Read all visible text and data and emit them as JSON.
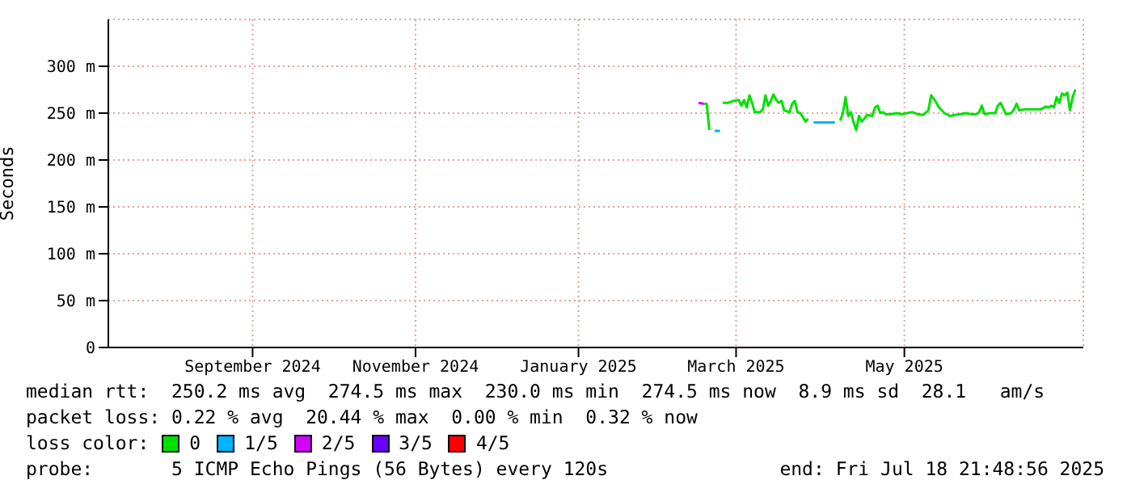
{
  "chart_data": {
    "type": "line",
    "ylabel": "Seconds",
    "legend_title": "loss color:",
    "legend": "bottom",
    "grid": true,
    "marker": "none",
    "line_style": "solid",
    "xlim": [
      "2024-07-18",
      "2025-07-18"
    ],
    "xticks": [
      {
        "value": "2024-09-10",
        "label": "September 2024"
      },
      {
        "value": "2024-11-10",
        "label": "November 2024"
      },
      {
        "value": "2025-01-10",
        "label": "January 2025"
      },
      {
        "value": "2025-03-10",
        "label": "March 2025"
      },
      {
        "value": "2025-05-12",
        "label": "May 2025"
      }
    ],
    "ylim": [
      0,
      350
    ],
    "yticks": [
      0,
      {
        "value": 50,
        "label": "50 m"
      },
      {
        "value": 100,
        "label": "100 m"
      },
      {
        "value": 150,
        "label": "150 m"
      },
      {
        "value": 200,
        "label": "200 m"
      },
      {
        "value": 250,
        "label": "250 m"
      },
      {
        "value": 300,
        "label": "300 m"
      }
    ],
    "x": [
      "2025-02-24",
      "2025-02-26",
      "2025-02-27",
      "2025-02-28",
      "2025-03-02",
      "2025-03-04",
      "2025-03-05",
      "2025-03-07",
      "2025-03-09",
      "2025-03-11",
      "2025-03-12",
      "2025-03-13",
      "2025-03-14",
      "2025-03-15",
      "2025-03-16",
      "2025-03-17",
      "2025-03-19",
      "2025-03-20",
      "2025-03-21",
      "2025-03-22",
      "2025-03-23",
      "2025-03-24",
      "2025-03-25",
      "2025-03-26",
      "2025-03-27",
      "2025-03-28",
      "2025-03-30",
      "2025-03-31",
      "2025-04-01",
      "2025-04-02",
      "2025-04-03",
      "2025-04-04",
      "2025-04-05",
      "2025-04-06",
      "2025-04-08",
      "2025-04-10",
      "2025-04-12",
      "2025-04-14",
      "2025-04-16",
      "2025-04-18",
      "2025-04-19",
      "2025-04-20",
      "2025-04-21",
      "2025-04-22",
      "2025-04-23",
      "2025-04-24",
      "2025-04-25",
      "2025-04-26",
      "2025-04-27",
      "2025-04-28",
      "2025-04-30",
      "2025-05-01",
      "2025-05-02",
      "2025-05-03",
      "2025-05-04",
      "2025-05-05",
      "2025-05-07",
      "2025-05-09",
      "2025-05-11",
      "2025-05-13",
      "2025-05-15",
      "2025-05-17",
      "2025-05-19",
      "2025-05-21",
      "2025-05-22",
      "2025-05-24",
      "2025-05-25",
      "2025-05-27",
      "2025-05-29",
      "2025-05-31",
      "2025-06-02",
      "2025-06-04",
      "2025-06-06",
      "2025-06-08",
      "2025-06-09",
      "2025-06-10",
      "2025-06-11",
      "2025-06-13",
      "2025-06-15",
      "2025-06-16",
      "2025-06-17",
      "2025-06-19",
      "2025-06-21",
      "2025-06-22",
      "2025-06-23",
      "2025-06-24",
      "2025-06-26",
      "2025-06-28",
      "2025-06-30",
      "2025-07-02",
      "2025-07-04",
      "2025-07-05",
      "2025-07-06",
      "2025-07-07",
      "2025-07-08",
      "2025-07-09",
      "2025-07-10",
      "2025-07-11",
      "2025-07-12",
      "2025-07-13",
      "2025-07-14",
      "2025-07-15"
    ],
    "series": [
      {
        "name": "0",
        "color": "#00e000",
        "values": [
          null,
          260,
          260,
          232,
          null,
          null,
          261,
          261,
          263,
          264,
          258,
          264,
          256,
          269,
          261,
          251,
          251,
          254,
          269,
          258,
          263,
          270,
          264,
          261,
          263,
          253,
          251,
          260,
          263,
          251,
          250,
          246,
          241,
          244,
          null,
          null,
          null,
          null,
          null,
          242,
          250,
          267,
          247,
          251,
          240,
          232,
          247,
          241,
          244,
          248,
          247,
          256,
          258,
          250,
          251,
          249,
          249,
          250,
          249,
          250,
          251,
          249,
          248,
          253,
          269,
          261,
          256,
          250,
          247,
          248,
          249,
          250,
          249,
          249,
          251,
          258,
          249,
          250,
          250,
          258,
          261,
          249,
          250,
          254,
          260,
          253,
          254,
          254,
          254,
          254,
          257,
          256,
          258,
          256,
          267,
          261,
          271,
          269,
          272,
          253,
          267,
          275
        ]
      },
      {
        "name": "1/5",
        "color": "#00b4ff",
        "values": [
          null,
          null,
          null,
          null,
          231,
          231,
          null,
          null,
          null,
          null,
          null,
          null,
          null,
          null,
          null,
          null,
          null,
          null,
          null,
          null,
          null,
          null,
          null,
          null,
          null,
          null,
          null,
          null,
          null,
          null,
          null,
          null,
          null,
          null,
          240,
          240,
          240,
          240,
          240,
          null,
          null,
          null,
          null,
          null,
          null,
          null,
          null,
          null,
          null,
          null,
          null,
          null,
          null,
          null,
          null,
          null,
          null,
          null,
          null,
          null,
          null,
          null,
          null,
          null,
          null,
          null,
          null,
          null,
          null,
          null,
          null,
          null,
          null,
          null,
          null,
          null,
          null,
          null,
          null,
          null,
          null,
          null,
          null,
          null,
          null,
          null,
          null,
          null,
          null,
          null,
          null,
          null,
          null,
          null,
          null,
          null,
          null,
          null,
          null,
          null,
          null,
          null
        ]
      },
      {
        "name": "2/5",
        "color": "#d400ff",
        "values": [
          261,
          260,
          null,
          null,
          null,
          null,
          null,
          null,
          null,
          null,
          null,
          null,
          null,
          null,
          null,
          null,
          null,
          null,
          null,
          null,
          null,
          null,
          null,
          null,
          null,
          null,
          null,
          null,
          null,
          null,
          null,
          null,
          null,
          null,
          null,
          null,
          null,
          null,
          null,
          null,
          null,
          null,
          null,
          null,
          null,
          null,
          null,
          null,
          null,
          null,
          null,
          null,
          null,
          null,
          null,
          null,
          null,
          null,
          null,
          null,
          null,
          null,
          null,
          null,
          null,
          null,
          null,
          null,
          null,
          null,
          null,
          null,
          null,
          null,
          null,
          null,
          null,
          null,
          null,
          null,
          null,
          null,
          null,
          null,
          null,
          null,
          null,
          null,
          null,
          null,
          null,
          null,
          null,
          null,
          null,
          null,
          null,
          null,
          null,
          null,
          null,
          null
        ]
      },
      {
        "name": "3/5",
        "color": "#6a00ff",
        "values": [
          null,
          null,
          null,
          null,
          null,
          null,
          null,
          null,
          null,
          null,
          null,
          null,
          null,
          null,
          null,
          null,
          null,
          null,
          null,
          null,
          null,
          null,
          null,
          null,
          null,
          null,
          null,
          null,
          null,
          null,
          null,
          null,
          null,
          null,
          null,
          null,
          null,
          null,
          null,
          null,
          null,
          null,
          null,
          null,
          null,
          null,
          null,
          null,
          null,
          null,
          null,
          null,
          null,
          null,
          null,
          null,
          null,
          null,
          null,
          null,
          null,
          null,
          null,
          null,
          null,
          null,
          null,
          null,
          null,
          null,
          null,
          null,
          null,
          null,
          null,
          null,
          null,
          null,
          null,
          null,
          null,
          null,
          null,
          null,
          null,
          null,
          null,
          null,
          null,
          null,
          null,
          null,
          null,
          null,
          null,
          null,
          null,
          null,
          null,
          null,
          null,
          null
        ]
      },
      {
        "name": "4/5",
        "color": "#ff0000",
        "values": [
          null,
          null,
          null,
          null,
          null,
          null,
          null,
          null,
          null,
          null,
          null,
          null,
          null,
          null,
          null,
          null,
          null,
          null,
          null,
          null,
          null,
          null,
          null,
          null,
          null,
          null,
          null,
          null,
          null,
          null,
          null,
          null,
          null,
          null,
          null,
          null,
          null,
          null,
          null,
          null,
          null,
          null,
          null,
          null,
          null,
          null,
          null,
          null,
          null,
          null,
          null,
          null,
          null,
          null,
          null,
          null,
          null,
          null,
          null,
          null,
          null,
          null,
          null,
          null,
          null,
          null,
          null,
          null,
          null,
          null,
          null,
          null,
          null,
          null,
          null,
          null,
          null,
          null,
          null,
          null,
          null,
          null,
          null,
          null,
          null,
          null,
          null,
          null,
          null,
          null,
          null,
          null,
          null,
          null,
          null,
          null,
          null,
          null,
          null,
          null,
          null,
          null
        ]
      }
    ],
    "annotations": [
      "median rtt:  250.2 ms avg  274.5 ms max  230.0 ms min  274.5 ms now  8.9 ms sd  28.1   am/s",
      "packet loss: 0.22 % avg  20.44 % max  0.00 % min  0.32 % now",
      "probe:       5 ICMP Echo Pings (56 Bytes) every 120s",
      "end: Fri Jul 18 21:48:56 2025"
    ]
  }
}
